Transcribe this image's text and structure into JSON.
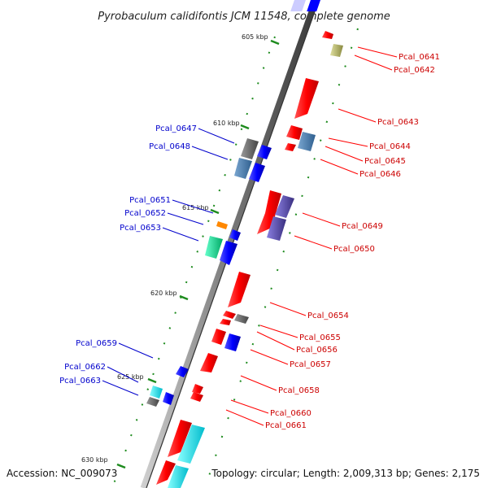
{
  "title": "Pyrobaculum calidifontis JCM 11548, complete genome",
  "footer": {
    "accession": "Accession: NC_009073",
    "topology": "Topology: circular; Length: 2,009,313 bp; Genes: 2,175"
  },
  "ticks": [
    {
      "label": "605 kbp"
    },
    {
      "label": "610 kbp"
    },
    {
      "label": "615 kbp"
    },
    {
      "label": "620 kbp"
    },
    {
      "label": "625 kbp"
    },
    {
      "label": "630 kbp"
    }
  ],
  "genes_right": [
    {
      "label": "Pcal_0641",
      "color": "#ff0000"
    },
    {
      "label": "Pcal_0642",
      "color": "#b5b56a"
    },
    {
      "label": "Pcal_0643",
      "color": "#ff0000"
    },
    {
      "label": "Pcal_0644",
      "color": "#ff0000"
    },
    {
      "label": "Pcal_0645",
      "color": "#4a7fb0"
    },
    {
      "label": "Pcal_0646",
      "color": "#ff0000"
    },
    {
      "label": "Pcal_0649",
      "color": "#ff0000"
    },
    {
      "label": "Pcal_0650",
      "color": "#4b3e96"
    },
    {
      "label": "Pcal_0654",
      "color": "#ff0000"
    },
    {
      "label": "Pcal_0655",
      "color": "#777777"
    },
    {
      "label": "Pcal_0656",
      "color": "#ff0000"
    },
    {
      "label": "Pcal_0657",
      "color": "#ff0000"
    },
    {
      "label": "Pcal_0658",
      "color": "#ff0000"
    },
    {
      "label": "Pcal_0660",
      "color": "#ff0000"
    },
    {
      "label": "Pcal_0661",
      "color": "#ff0000"
    }
  ],
  "genes_left": [
    {
      "label": "Pcal_0647",
      "color": "#555555"
    },
    {
      "label": "Pcal_0648",
      "color": "#4a7fb0"
    },
    {
      "label": "Pcal_0651",
      "color": "#ff8800"
    },
    {
      "label": "Pcal_0652",
      "color": "#0000ff"
    },
    {
      "label": "Pcal_0653",
      "color": "#22dd88"
    },
    {
      "label": "Pcal_0659",
      "color": "#0000ff"
    },
    {
      "label": "Pcal_0662",
      "color": "#00bbbb"
    },
    {
      "label": "Pcal_0663",
      "color": "#aaaaaa"
    }
  ]
}
